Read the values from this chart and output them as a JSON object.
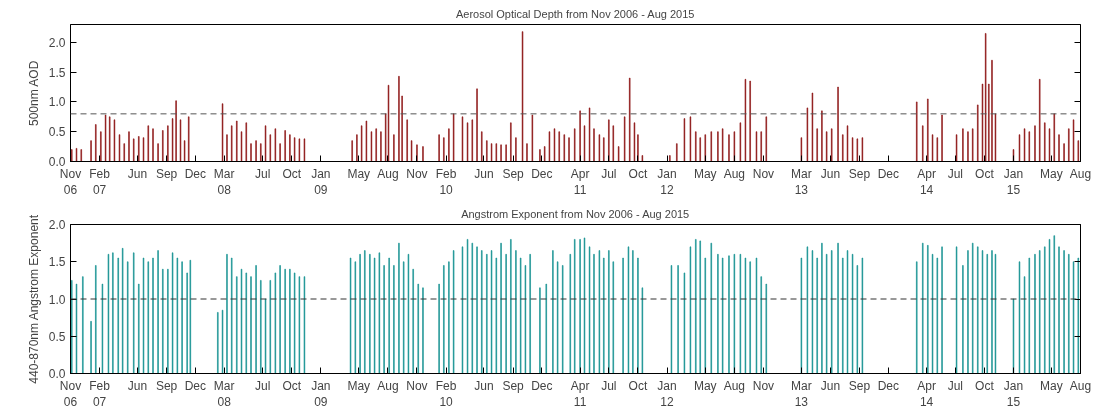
{
  "chart_data": [
    {
      "type": "bar",
      "title": "Aerosol Optical Depth from Nov 2006 - Aug 2015",
      "ylabel": "500nm AOD",
      "color": "#8b1010",
      "grid": false,
      "xlim": [
        "2006-11-01",
        "2015-08-01"
      ],
      "ylim": [
        0,
        2.3
      ],
      "yticks": [
        {
          "value": 0,
          "label": "0.0"
        },
        {
          "value": 0.5,
          "label": "0.5"
        },
        {
          "value": 1,
          "label": "1.0"
        },
        {
          "value": 1.5,
          "label": "1.5"
        },
        {
          "value": 2,
          "label": "2.0"
        }
      ],
      "xticks": [
        {
          "value": "2006-11-01",
          "label": "Nov\n06"
        },
        {
          "value": "2007-02-01",
          "label": "Feb\n07"
        },
        {
          "value": "2007-06-01",
          "label": "Jun"
        },
        {
          "value": "2007-09-01",
          "label": "Sep"
        },
        {
          "value": "2007-12-01",
          "label": "Dec"
        },
        {
          "value": "2008-03-01",
          "label": "Mar\n08"
        },
        {
          "value": "2008-07-01",
          "label": "Jul"
        },
        {
          "value": "2008-10-01",
          "label": "Oct"
        },
        {
          "value": "2009-01-01",
          "label": "Jan\n09"
        },
        {
          "value": "2009-05-01",
          "label": "May"
        },
        {
          "value": "2009-08-01",
          "label": "Aug"
        },
        {
          "value": "2009-11-01",
          "label": "Nov"
        },
        {
          "value": "2010-02-01",
          "label": "Feb\n10"
        },
        {
          "value": "2010-06-01",
          "label": "Jun"
        },
        {
          "value": "2010-09-01",
          "label": "Sep"
        },
        {
          "value": "2010-12-01",
          "label": "Dec"
        },
        {
          "value": "2011-04-01",
          "label": "Apr\n11"
        },
        {
          "value": "2011-07-01",
          "label": "Jul"
        },
        {
          "value": "2011-10-01",
          "label": "Oct"
        },
        {
          "value": "2012-01-01",
          "label": "Jan\n12"
        },
        {
          "value": "2012-05-01",
          "label": "May"
        },
        {
          "value": "2012-08-01",
          "label": "Aug"
        },
        {
          "value": "2012-11-01",
          "label": "Nov"
        },
        {
          "value": "2013-03-01",
          "label": "Mar\n13"
        },
        {
          "value": "2013-06-01",
          "label": "Jun"
        },
        {
          "value": "2013-09-01",
          "label": "Sep"
        },
        {
          "value": "2013-12-01",
          "label": "Dec"
        },
        {
          "value": "2014-04-01",
          "label": "Apr\n14"
        },
        {
          "value": "2014-07-01",
          "label": "Jul"
        },
        {
          "value": "2014-10-01",
          "label": "Oct"
        },
        {
          "value": "2015-01-01",
          "label": "Jan\n15"
        },
        {
          "value": "2015-05-01",
          "label": "May"
        },
        {
          "value": "2015-08-01",
          "label": "Aug"
        }
      ],
      "ref_lines": [
        {
          "axis": "y",
          "value": 0.8,
          "label": null,
          "color": "#555555",
          "line_style": "dashed"
        }
      ],
      "x": [
        "2006-11-05",
        "2006-11-20",
        "2006-12-05",
        "2007-01-05",
        "2007-01-20",
        "2007-02-05",
        "2007-02-20",
        "2007-03-05",
        "2007-03-20",
        "2007-04-05",
        "2007-04-20",
        "2007-05-05",
        "2007-05-20",
        "2007-06-05",
        "2007-06-20",
        "2007-07-05",
        "2007-07-20",
        "2007-08-05",
        "2007-08-20",
        "2007-09-05",
        "2007-09-20",
        "2007-10-01",
        "2007-10-15",
        "2007-10-28",
        "2007-11-10",
        "2008-02-25",
        "2008-03-10",
        "2008-03-25",
        "2008-04-10",
        "2008-04-25",
        "2008-05-10",
        "2008-05-25",
        "2008-06-10",
        "2008-06-25",
        "2008-07-10",
        "2008-07-25",
        "2008-08-10",
        "2008-08-25",
        "2008-09-10",
        "2008-09-25",
        "2008-10-10",
        "2008-10-25",
        "2008-11-10",
        "2009-04-10",
        "2009-04-25",
        "2009-05-10",
        "2009-05-25",
        "2009-06-10",
        "2009-06-25",
        "2009-07-10",
        "2009-07-25",
        "2009-08-03",
        "2009-08-20",
        "2009-09-05",
        "2009-09-15",
        "2009-10-01",
        "2009-10-15",
        "2009-11-01",
        "2009-11-20",
        "2010-01-10",
        "2010-01-25",
        "2010-02-10",
        "2010-02-25",
        "2010-03-25",
        "2010-04-10",
        "2010-04-25",
        "2010-05-10",
        "2010-05-25",
        "2010-06-10",
        "2010-06-25",
        "2010-07-10",
        "2010-07-25",
        "2010-08-10",
        "2010-08-25",
        "2010-09-10",
        "2010-10-01",
        "2010-10-15",
        "2010-11-01",
        "2010-11-25",
        "2010-12-10",
        "2010-12-25",
        "2011-01-10",
        "2011-01-25",
        "2011-02-10",
        "2011-02-25",
        "2011-03-15",
        "2011-04-01",
        "2011-04-15",
        "2011-05-01",
        "2011-05-15",
        "2011-06-01",
        "2011-06-15",
        "2011-07-01",
        "2011-07-15",
        "2011-08-01",
        "2011-08-20",
        "2011-09-05",
        "2011-09-20",
        "2011-10-01",
        "2011-10-15",
        "2012-01-10",
        "2012-02-01",
        "2012-02-25",
        "2012-03-15",
        "2012-04-01",
        "2012-04-15",
        "2012-05-01",
        "2012-05-20",
        "2012-06-10",
        "2012-06-25",
        "2012-07-15",
        "2012-08-01",
        "2012-08-20",
        "2012-09-05",
        "2012-09-20",
        "2012-10-10",
        "2012-10-25",
        "2012-11-10",
        "2013-03-01",
        "2013-03-20",
        "2013-04-05",
        "2013-04-20",
        "2013-05-05",
        "2013-05-20",
        "2013-06-05",
        "2013-06-25",
        "2013-07-10",
        "2013-07-25",
        "2013-08-10",
        "2013-08-25",
        "2013-09-10",
        "2014-03-01",
        "2014-03-20",
        "2014-04-05",
        "2014-04-20",
        "2014-05-05",
        "2014-05-20",
        "2014-07-05",
        "2014-07-25",
        "2014-08-10",
        "2014-08-25",
        "2014-09-10",
        "2014-09-25",
        "2014-10-05",
        "2014-10-15",
        "2014-10-25",
        "2014-11-05",
        "2015-01-01",
        "2015-01-20",
        "2015-02-05",
        "2015-02-20",
        "2015-03-10",
        "2015-03-25",
        "2015-04-10",
        "2015-04-25",
        "2015-05-10",
        "2015-05-25",
        "2015-06-10",
        "2015-06-25",
        "2015-07-10",
        "2015-07-25"
      ],
      "values": [
        0.2,
        0.22,
        0.2,
        0.35,
        0.62,
        0.5,
        0.78,
        0.75,
        0.7,
        0.45,
        0.3,
        0.5,
        0.38,
        0.42,
        0.4,
        0.6,
        0.55,
        0.3,
        0.52,
        0.6,
        0.72,
        1.02,
        0.7,
        0.35,
        0.75,
        0.97,
        0.45,
        0.6,
        0.68,
        0.5,
        0.65,
        0.3,
        0.35,
        0.3,
        0.6,
        0.45,
        0.55,
        0.3,
        0.52,
        0.45,
        0.4,
        0.38,
        0.38,
        0.35,
        0.45,
        0.6,
        0.68,
        0.5,
        0.55,
        0.5,
        0.8,
        1.28,
        0.45,
        1.43,
        1.1,
        0.7,
        0.35,
        0.28,
        0.25,
        0.45,
        0.4,
        0.55,
        0.8,
        0.75,
        0.65,
        0.7,
        1.22,
        0.5,
        0.35,
        0.3,
        0.3,
        0.28,
        0.28,
        0.65,
        0.4,
        2.18,
        0.3,
        0.78,
        0.2,
        0.25,
        0.5,
        0.55,
        0.5,
        0.45,
        0.4,
        0.55,
        0.85,
        0.6,
        0.9,
        0.55,
        0.45,
        0.4,
        0.7,
        0.6,
        0.25,
        0.75,
        1.4,
        0.65,
        0.45,
        0.1,
        0.1,
        0.3,
        0.72,
        0.75,
        0.5,
        0.4,
        0.45,
        0.5,
        0.5,
        0.55,
        0.45,
        0.5,
        0.65,
        1.38,
        1.35,
        0.5,
        0.5,
        0.75,
        0.4,
        0.9,
        1.15,
        0.55,
        0.85,
        0.5,
        0.55,
        1.25,
        0.45,
        0.6,
        0.4,
        0.38,
        0.4,
        1.0,
        0.6,
        1.05,
        0.45,
        0.4,
        0.78,
        0.45,
        0.55,
        0.5,
        0.55,
        0.95,
        1.3,
        2.15,
        1.3,
        1.7,
        0.8,
        0.2,
        0.45,
        0.55,
        0.5,
        0.6,
        1.38,
        0.65,
        0.55,
        0.8,
        0.45,
        0.3,
        0.55,
        0.7,
        0.35
      ]
    },
    {
      "type": "bar",
      "title": "Angstrom Exponent from Nov 2006 - Aug 2015",
      "ylabel": "440-870nm Angstrom Exponent",
      "color": "#139090",
      "grid": false,
      "xlim": [
        "2006-11-01",
        "2015-08-01"
      ],
      "ylim": [
        0,
        2.0
      ],
      "yticks": [
        {
          "value": 0,
          "label": "0.0"
        },
        {
          "value": 0.5,
          "label": "0.5"
        },
        {
          "value": 1,
          "label": "1.0"
        },
        {
          "value": 1.5,
          "label": "1.5"
        },
        {
          "value": 2,
          "label": "2.0"
        }
      ],
      "xticks": [
        {
          "value": "2006-11-01",
          "label": "Nov\n06"
        },
        {
          "value": "2007-02-01",
          "label": "Feb\n07"
        },
        {
          "value": "2007-06-01",
          "label": "Jun"
        },
        {
          "value": "2007-09-01",
          "label": "Sep"
        },
        {
          "value": "2007-12-01",
          "label": "Dec"
        },
        {
          "value": "2008-03-01",
          "label": "Mar\n08"
        },
        {
          "value": "2008-07-01",
          "label": "Jul"
        },
        {
          "value": "2008-10-01",
          "label": "Oct"
        },
        {
          "value": "2009-01-01",
          "label": "Jan\n09"
        },
        {
          "value": "2009-05-01",
          "label": "May"
        },
        {
          "value": "2009-08-01",
          "label": "Aug"
        },
        {
          "value": "2009-11-01",
          "label": "Nov"
        },
        {
          "value": "2010-02-01",
          "label": "Feb\n10"
        },
        {
          "value": "2010-06-01",
          "label": "Jun"
        },
        {
          "value": "2010-09-01",
          "label": "Sep"
        },
        {
          "value": "2010-12-01",
          "label": "Dec"
        },
        {
          "value": "2011-04-01",
          "label": "Apr\n11"
        },
        {
          "value": "2011-07-01",
          "label": "Jul"
        },
        {
          "value": "2011-10-01",
          "label": "Oct"
        },
        {
          "value": "2012-01-01",
          "label": "Jan\n12"
        },
        {
          "value": "2012-05-01",
          "label": "May"
        },
        {
          "value": "2012-08-01",
          "label": "Aug"
        },
        {
          "value": "2012-11-01",
          "label": "Nov"
        },
        {
          "value": "2013-03-01",
          "label": "Mar\n13"
        },
        {
          "value": "2013-06-01",
          "label": "Jun"
        },
        {
          "value": "2013-09-01",
          "label": "Sep"
        },
        {
          "value": "2013-12-01",
          "label": "Dec"
        },
        {
          "value": "2014-04-01",
          "label": "Apr\n14"
        },
        {
          "value": "2014-07-01",
          "label": "Jul"
        },
        {
          "value": "2014-10-01",
          "label": "Oct"
        },
        {
          "value": "2015-01-01",
          "label": "Jan\n15"
        },
        {
          "value": "2015-05-01",
          "label": "May"
        },
        {
          "value": "2015-08-01",
          "label": "Aug"
        }
      ],
      "ref_lines": [
        {
          "axis": "y",
          "value": 1.0,
          "label": null,
          "color": "#333333",
          "line_style": "dashed"
        }
      ],
      "x": [
        "2006-11-05",
        "2006-11-20",
        "2006-12-10",
        "2007-01-05",
        "2007-01-20",
        "2007-02-10",
        "2007-03-01",
        "2007-03-15",
        "2007-04-01",
        "2007-04-15",
        "2007-05-01",
        "2007-05-20",
        "2007-06-05",
        "2007-06-20",
        "2007-07-05",
        "2007-07-20",
        "2007-08-05",
        "2007-08-20",
        "2007-09-05",
        "2007-09-20",
        "2007-10-05",
        "2007-10-20",
        "2007-11-05",
        "2007-11-15",
        "2008-02-10",
        "2008-02-25",
        "2008-03-10",
        "2008-03-25",
        "2008-04-10",
        "2008-04-25",
        "2008-05-10",
        "2008-05-25",
        "2008-06-10",
        "2008-06-25",
        "2008-07-10",
        "2008-07-25",
        "2008-08-10",
        "2008-08-25",
        "2008-09-10",
        "2008-09-25",
        "2008-10-10",
        "2008-10-25",
        "2008-11-10",
        "2009-04-05",
        "2009-04-20",
        "2009-05-05",
        "2009-05-20",
        "2009-06-05",
        "2009-06-20",
        "2009-07-05",
        "2009-07-20",
        "2009-08-05",
        "2009-08-20",
        "2009-09-05",
        "2009-09-20",
        "2009-10-05",
        "2009-10-20",
        "2009-11-05",
        "2009-11-20",
        "2010-01-10",
        "2010-01-25",
        "2010-02-10",
        "2010-02-25",
        "2010-03-25",
        "2010-04-10",
        "2010-04-25",
        "2010-05-10",
        "2010-05-25",
        "2010-06-10",
        "2010-06-25",
        "2010-07-10",
        "2010-07-25",
        "2010-08-10",
        "2010-08-25",
        "2010-09-10",
        "2010-09-25",
        "2010-10-10",
        "2010-10-25",
        "2010-11-25",
        "2010-12-15",
        "2011-01-05",
        "2011-01-20",
        "2011-02-05",
        "2011-03-01",
        "2011-03-15",
        "2011-04-01",
        "2011-04-15",
        "2011-05-01",
        "2011-05-15",
        "2011-06-01",
        "2011-06-15",
        "2011-07-01",
        "2011-07-15",
        "2011-08-15",
        "2011-09-01",
        "2011-09-15",
        "2011-10-01",
        "2011-10-15",
        "2012-01-15",
        "2012-02-05",
        "2012-02-25",
        "2012-03-15",
        "2012-04-01",
        "2012-04-15",
        "2012-05-01",
        "2012-05-20",
        "2012-06-10",
        "2012-06-25",
        "2012-07-15",
        "2012-08-01",
        "2012-08-20",
        "2012-09-05",
        "2012-09-20",
        "2012-10-10",
        "2012-10-25",
        "2012-11-10",
        "2013-03-01",
        "2013-03-20",
        "2013-04-05",
        "2013-04-20",
        "2013-05-05",
        "2013-05-20",
        "2013-06-05",
        "2013-06-25",
        "2013-07-10",
        "2013-07-25",
        "2013-08-10",
        "2013-08-25",
        "2013-09-10",
        "2014-03-01",
        "2014-03-20",
        "2014-04-05",
        "2014-04-20",
        "2014-05-05",
        "2014-05-20",
        "2014-07-05",
        "2014-07-25",
        "2014-08-10",
        "2014-08-25",
        "2014-09-10",
        "2014-09-25",
        "2014-10-10",
        "2014-10-25",
        "2014-11-05",
        "2015-01-01",
        "2015-01-20",
        "2015-02-05",
        "2015-02-20",
        "2015-03-10",
        "2015-03-25",
        "2015-04-10",
        "2015-04-25",
        "2015-05-10",
        "2015-05-25",
        "2015-06-10",
        "2015-06-25",
        "2015-07-10",
        "2015-07-25"
      ],
      "values": [
        1.25,
        1.2,
        1.3,
        0.7,
        1.45,
        1.2,
        1.6,
        1.62,
        1.55,
        1.68,
        1.5,
        1.62,
        1.2,
        1.55,
        1.5,
        1.55,
        1.65,
        1.4,
        1.4,
        1.62,
        1.55,
        1.5,
        1.35,
        1.52,
        0.82,
        0.85,
        1.6,
        1.55,
        1.3,
        1.4,
        1.35,
        1.3,
        1.45,
        1.25,
        1.0,
        1.25,
        1.35,
        1.45,
        1.4,
        1.4,
        1.35,
        1.3,
        1.3,
        1.55,
        1.5,
        1.6,
        1.65,
        1.6,
        1.55,
        1.62,
        1.45,
        1.55,
        1.45,
        1.75,
        1.5,
        1.6,
        1.4,
        1.2,
        1.15,
        1.2,
        1.45,
        1.5,
        1.65,
        1.7,
        1.8,
        1.75,
        1.7,
        1.65,
        1.6,
        1.65,
        1.55,
        1.75,
        1.6,
        1.8,
        1.65,
        1.55,
        1.45,
        1.6,
        1.15,
        1.2,
        1.65,
        1.5,
        1.45,
        1.6,
        1.8,
        1.8,
        1.82,
        1.7,
        1.6,
        1.65,
        1.55,
        1.65,
        1.5,
        1.55,
        1.7,
        1.65,
        1.55,
        1.15,
        1.45,
        1.45,
        1.35,
        1.7,
        1.8,
        1.78,
        1.55,
        1.75,
        1.6,
        1.55,
        1.58,
        1.6,
        1.6,
        1.55,
        1.5,
        1.55,
        1.3,
        1.2,
        1.55,
        1.7,
        1.65,
        1.55,
        1.75,
        1.6,
        1.65,
        1.75,
        1.55,
        1.65,
        1.6,
        1.45,
        1.55,
        1.5,
        1.75,
        1.72,
        1.6,
        1.55,
        1.7,
        1.7,
        1.45,
        1.65,
        1.75,
        1.7,
        1.65,
        1.6,
        1.65,
        1.6,
        1.0,
        1.5,
        1.3,
        1.55,
        1.6,
        1.65,
        1.7,
        1.8,
        1.85,
        1.7,
        1.65,
        1.6,
        1.5,
        1.55
      ]
    }
  ]
}
